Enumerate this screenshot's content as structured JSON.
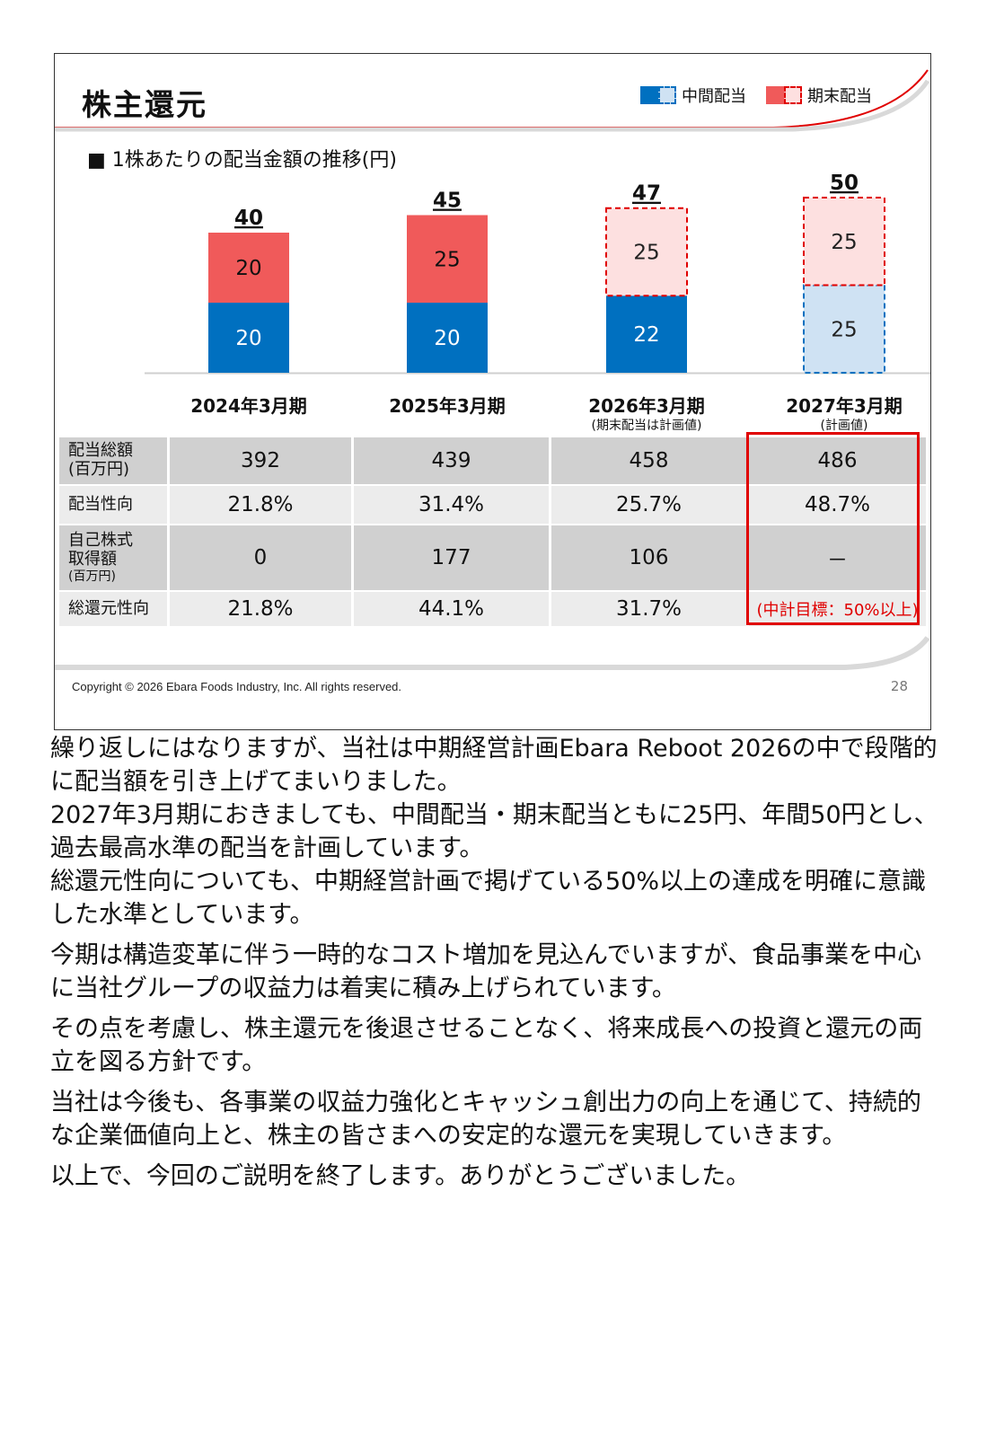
{
  "slide": {
    "title": "株主還元",
    "subtitle": "■ 1株あたりの配当金額の推移(円)",
    "legend": {
      "interim_label": "中間配当",
      "year_end_label": "期末配当"
    },
    "copyright": "Copyright © 2026 Ebara Foods Industry, Inc.   All rights reserved.",
    "page_number": "28",
    "colors": {
      "interim_actual": "#0070c0",
      "interim_plan": "#cfe2f3",
      "year_end_actual": "#f05a5a",
      "year_end_plan": "#fde0e0",
      "plan_border_red": "#e00000",
      "plan_border_blue": "#0070c0",
      "accent": "#e00000"
    }
  },
  "chart_data": {
    "type": "bar",
    "stacked": true,
    "categories": [
      "2024年3月期",
      "2025年3月期",
      "2026年3月期",
      "2027年3月期"
    ],
    "category_notes": [
      "",
      "",
      "(期末配当は計画値)",
      "(計画値)"
    ],
    "series": [
      {
        "name": "中間配当",
        "values": [
          20,
          20,
          22,
          25
        ],
        "planned": [
          false,
          false,
          false,
          true
        ]
      },
      {
        "name": "期末配当",
        "values": [
          20,
          25,
          25,
          25
        ],
        "planned": [
          false,
          false,
          true,
          true
        ]
      }
    ],
    "totals": [
      "40",
      "45",
      "47",
      "50"
    ],
    "ylim": [
      0,
      50
    ]
  },
  "table": {
    "rows": [
      {
        "label": [
          "配当総額",
          "(百万円)"
        ],
        "values": [
          "392",
          "439",
          "458",
          "486"
        ]
      },
      {
        "label": [
          "配当性向"
        ],
        "values": [
          "21.8%",
          "31.4%",
          "25.7%",
          "48.7%"
        ]
      },
      {
        "label": [
          "自己株式",
          "取得額",
          "(百万円)"
        ],
        "values": [
          "0",
          "177",
          "106",
          "－"
        ]
      },
      {
        "label": [
          "総還元性向"
        ],
        "values": [
          "21.8%",
          "44.1%",
          "31.7%",
          "(中計目標：50%以上)"
        ]
      }
    ]
  },
  "notes": [
    "繰り返しにはなりますが、当社は中期経営計画Ebara Reboot 2026の中で段階的に配当額を引き上げてまいりました。",
    "2027年3月期におきましても、中間配当・期末配当ともに25円、年間50円とし、過去最高水準の配当を計画しています。",
    "総還元性向についても、中期経営計画で掲げている50%以上の達成を明確に意識した水準としています。",
    "今期は構造変革に伴う一時的なコスト増加を見込んでいますが、食品事業を中心に当社グループの収益力は着実に積み上げられています。",
    "その点を考慮し、株主還元を後退させることなく、将来成長への投資と還元の両立を図る方針です。",
    "当社は今後も、各事業の収益力強化とキャッシュ創出力の向上を通じて、持続的な企業価値向上と、株主の皆さまへの安定的な還元を実現していきます。",
    "以上で、今回のご説明を終了します。ありがとうございました。"
  ]
}
